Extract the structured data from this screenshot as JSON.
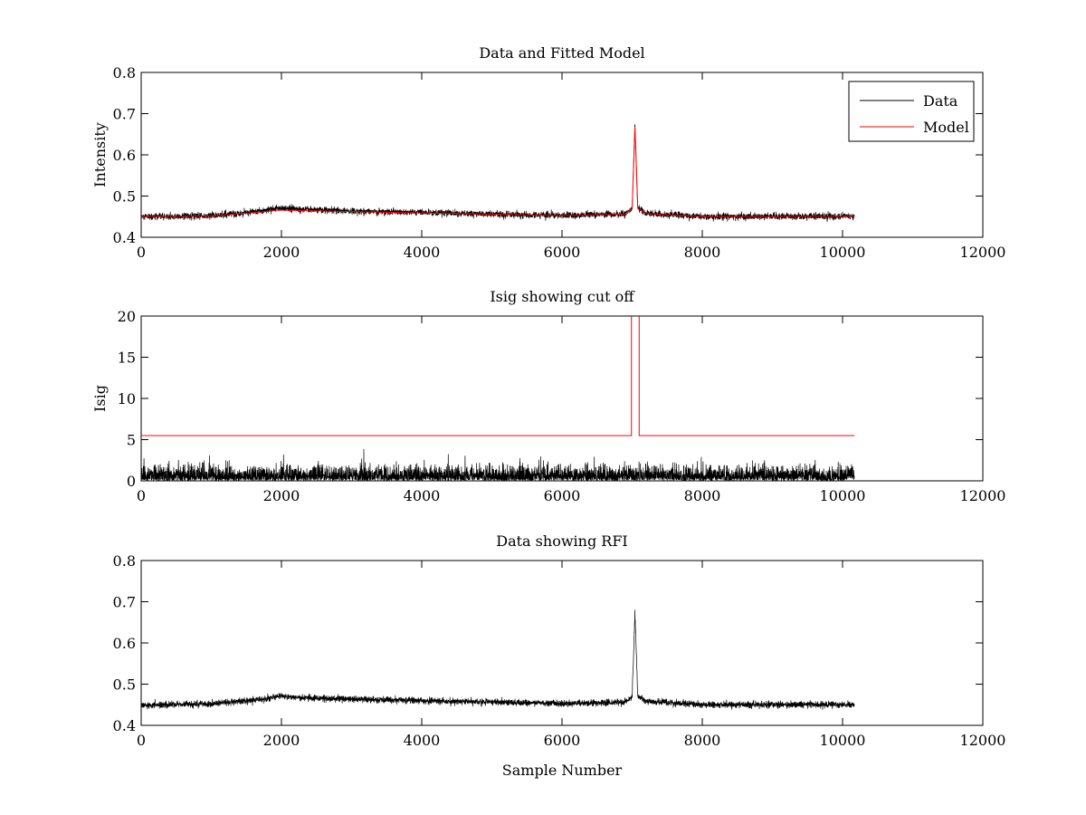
{
  "figure": {
    "background": "#ffffff"
  },
  "chart_data": [
    {
      "type": "line",
      "title": "Data and Fitted Model",
      "xlabel": "",
      "ylabel": "Intensity",
      "xlim": [
        0,
        12000
      ],
      "ylim": [
        0.4,
        0.8
      ],
      "xticks": [
        0,
        2000,
        4000,
        6000,
        8000,
        10000,
        12000
      ],
      "yticks": [
        0.4,
        0.5,
        0.6,
        0.7,
        0.8
      ],
      "grid": false,
      "legend": {
        "position": "top-right",
        "entries": [
          "Data",
          "Model"
        ]
      },
      "series": [
        {
          "name": "Data",
          "color": "#000000",
          "n_samples": 10170,
          "noise_amplitude": 0.004,
          "baseline": [
            [
              0,
              0.449
            ],
            [
              1000,
              0.452
            ],
            [
              1700,
              0.463
            ],
            [
              1950,
              0.471
            ],
            [
              2500,
              0.466
            ],
            [
              4000,
              0.46
            ],
            [
              6000,
              0.453
            ],
            [
              6900,
              0.456
            ],
            [
              7000,
              0.47
            ],
            [
              7040,
              0.675
            ],
            [
              7080,
              0.47
            ],
            [
              7200,
              0.458
            ],
            [
              8000,
              0.45
            ],
            [
              10170,
              0.451
            ]
          ]
        },
        {
          "name": "Model",
          "color": "#ff0000",
          "baseline": [
            [
              0,
              0.45
            ],
            [
              1000,
              0.452
            ],
            [
              1700,
              0.461
            ],
            [
              1950,
              0.466
            ],
            [
              2500,
              0.464
            ],
            [
              4000,
              0.459
            ],
            [
              6000,
              0.453
            ],
            [
              6900,
              0.456
            ],
            [
              7000,
              0.47
            ],
            [
              7040,
              0.668
            ],
            [
              7080,
              0.47
            ],
            [
              7200,
              0.458
            ],
            [
              8000,
              0.45
            ],
            [
              10170,
              0.451
            ]
          ]
        }
      ]
    },
    {
      "type": "line",
      "title": "Isig showing cut off",
      "xlabel": "",
      "ylabel": "Isig",
      "xlim": [
        0,
        12000
      ],
      "ylim": [
        0,
        20
      ],
      "xticks": [
        0,
        2000,
        4000,
        6000,
        8000,
        10000,
        12000
      ],
      "yticks": [
        0,
        5,
        10,
        15,
        20
      ],
      "grid": false,
      "series": [
        {
          "name": "Isig",
          "color": "#000000",
          "n_samples": 10170,
          "distribution": "abs-normal",
          "sigma": 0.85
        },
        {
          "name": "cut off",
          "color": "#ff0000",
          "points": [
            [
              0,
              5.5
            ],
            [
              6990,
              5.5
            ],
            [
              6990,
              22
            ],
            [
              7100,
              22
            ],
            [
              7100,
              5.5
            ],
            [
              10170,
              5.5
            ]
          ]
        }
      ]
    },
    {
      "type": "line",
      "title": "Data showing RFI",
      "xlabel": "Sample Number",
      "ylabel": "",
      "xlim": [
        0,
        12000
      ],
      "ylim": [
        0.4,
        0.8
      ],
      "xticks": [
        0,
        2000,
        4000,
        6000,
        8000,
        10000,
        12000
      ],
      "yticks": [
        0.4,
        0.5,
        0.6,
        0.7,
        0.8
      ],
      "grid": false,
      "series": [
        {
          "name": "Data",
          "color": "#000000",
          "n_samples": 10170,
          "noise_amplitude": 0.004,
          "baseline": [
            [
              0,
              0.449
            ],
            [
              1000,
              0.452
            ],
            [
              1700,
              0.463
            ],
            [
              1950,
              0.471
            ],
            [
              2500,
              0.466
            ],
            [
              4000,
              0.46
            ],
            [
              6000,
              0.453
            ],
            [
              6900,
              0.456
            ],
            [
              7000,
              0.47
            ],
            [
              7040,
              0.675
            ],
            [
              7080,
              0.47
            ],
            [
              7200,
              0.458
            ],
            [
              8000,
              0.45
            ],
            [
              10170,
              0.451
            ]
          ]
        }
      ]
    }
  ]
}
